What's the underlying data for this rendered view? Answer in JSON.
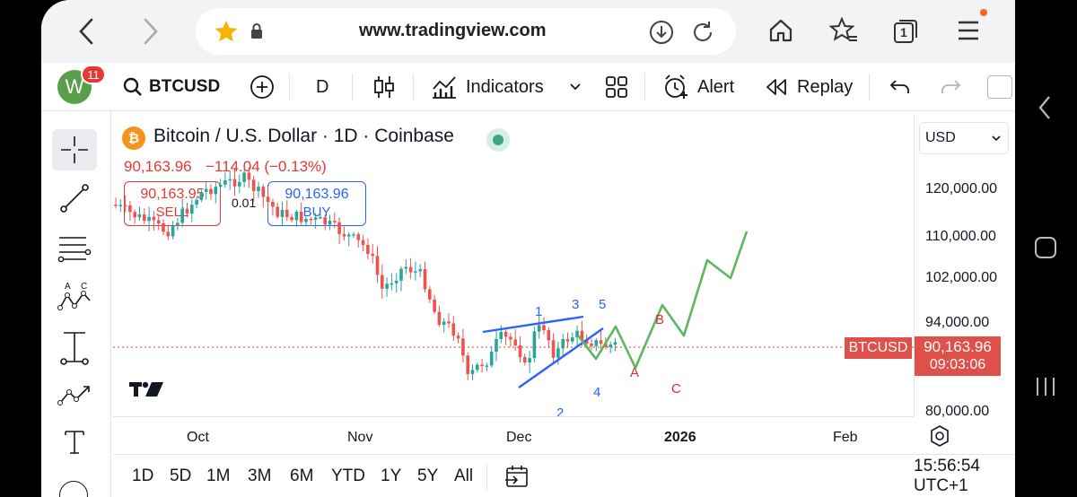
{
  "browser": {
    "url": "www.tradingview.com",
    "tab_count": "1"
  },
  "toolbar": {
    "avatar_letter": "W",
    "notification_count": "11",
    "symbol": "BTCUSD",
    "interval": "D",
    "indicators_label": "Indicators",
    "alert_label": "Alert",
    "replay_label": "Replay"
  },
  "legend": {
    "title": "Bitcoin / U.S. Dollar · 1D · Coinbase",
    "price": "90,163.96",
    "change": "−114.04 (−0.13%)",
    "sell_price": "90,163.95",
    "sell_label": "SELL",
    "spread": "0.01",
    "buy_price": "90,163.96",
    "buy_label": "BUY"
  },
  "currency": "USD",
  "price_axis": {
    "labels": [
      "120,000.00",
      "110,000.00",
      "102,000.00",
      "94,000.00",
      "80,000.00"
    ],
    "current_symbol": "BTCUSD",
    "current_price": "90,163.96",
    "countdown": "09:03:06"
  },
  "time_axis": {
    "labels": [
      "Oct",
      "Nov",
      "Dec",
      "2026",
      "Feb"
    ]
  },
  "wave_labels": {
    "blue": [
      "1",
      "2",
      "3",
      "4",
      "5"
    ],
    "red": [
      "A",
      "B",
      "C"
    ]
  },
  "ranges": [
    "1D",
    "5D",
    "1M",
    "3M",
    "6M",
    "YTD",
    "1Y",
    "5Y",
    "All"
  ],
  "clock": "15:56:54 UTC+1",
  "colors": {
    "up": "#26a69a",
    "down": "#ef5350",
    "projection": "#5cb85c",
    "wave_blue": "#2962ff",
    "wave_red": "#d32f2f",
    "price_label_bg": "#e0504a"
  }
}
